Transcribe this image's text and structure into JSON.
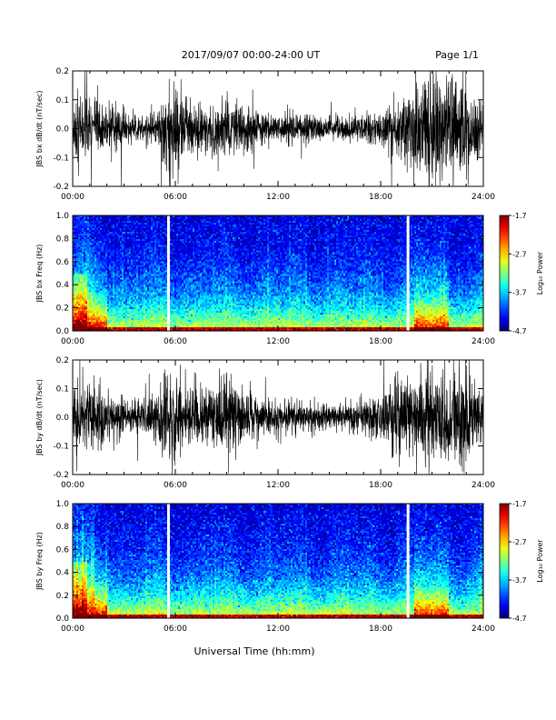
{
  "header": {
    "title": "2017/09/07  00:00-24:00 UT",
    "page": "Page 1/1"
  },
  "xlabel": "Universal Time (hh:mm)",
  "colorbar": {
    "label": "Log₁₀ Power",
    "ticks": [
      -1.7,
      -2.7,
      -3.7,
      -4.7
    ],
    "range": [
      -4.7,
      -1.7
    ]
  },
  "chart_data": [
    {
      "type": "line",
      "ylabel": "JBS bx dB/dt (nT/sec)",
      "xlim": [
        0,
        24
      ],
      "ylim": [
        -0.2,
        0.2
      ],
      "xticks": [
        "00:00",
        "06:00",
        "12:00",
        "18:00",
        "24:00"
      ],
      "yticks": [
        "0.2",
        "0.1",
        "0.0",
        "-0.1",
        "-0.2"
      ],
      "activity_hours": [
        0,
        1,
        2,
        3,
        4,
        5,
        5.5,
        6,
        7,
        8,
        9,
        10,
        11,
        12,
        13,
        14,
        15,
        16,
        17,
        18,
        19,
        20,
        21,
        22,
        23,
        24
      ],
      "amplitude_envelope": [
        0.14,
        0.13,
        0.09,
        0.06,
        0.05,
        0.07,
        0.19,
        0.18,
        0.1,
        0.08,
        0.1,
        0.09,
        0.06,
        0.05,
        0.05,
        0.05,
        0.04,
        0.04,
        0.05,
        0.07,
        0.1,
        0.18,
        0.22,
        0.19,
        0.17,
        0.08
      ]
    },
    {
      "type": "heatmap",
      "ylabel": "JBS bx Freq (Hz)",
      "xlim": [
        0,
        24
      ],
      "ylim": [
        0,
        1.0
      ],
      "xticks": [
        "00:00",
        "06:00",
        "12:00",
        "18:00",
        "24:00"
      ],
      "yticks": [
        "1.0",
        "0.8",
        "0.6",
        "0.4",
        "0.2",
        "0.0"
      ],
      "data_gaps_hours": [
        5.6,
        19.6
      ]
    },
    {
      "type": "line",
      "ylabel": "JBS by dB/dt (nT/sec)",
      "xlim": [
        0,
        24
      ],
      "ylim": [
        -0.2,
        0.2
      ],
      "xticks": [
        "00:00",
        "06:00",
        "12:00",
        "18:00",
        "24:00"
      ],
      "yticks": [
        "0.2",
        "0.1",
        "0.0",
        "-0.1",
        "-0.2"
      ],
      "activity_hours": [
        0,
        1,
        2,
        3,
        4,
        5,
        5.5,
        6,
        7,
        8,
        9,
        10,
        11,
        12,
        13,
        14,
        15,
        16,
        17,
        18,
        19,
        20,
        21,
        22,
        23,
        24
      ],
      "amplitude_envelope": [
        0.17,
        0.16,
        0.1,
        0.07,
        0.06,
        0.09,
        0.2,
        0.19,
        0.1,
        0.12,
        0.15,
        0.11,
        0.07,
        0.06,
        0.06,
        0.06,
        0.05,
        0.05,
        0.06,
        0.1,
        0.16,
        0.14,
        0.18,
        0.16,
        0.2,
        0.1
      ]
    },
    {
      "type": "heatmap",
      "ylabel": "JBS by Freq (Hz)",
      "xlim": [
        0,
        24
      ],
      "ylim": [
        0,
        1.0
      ],
      "xticks": [
        "00:00",
        "06:00",
        "12:00",
        "18:00",
        "24:00"
      ],
      "yticks": [
        "1.0",
        "0.8",
        "0.6",
        "0.4",
        "0.2",
        "0.0"
      ],
      "data_gaps_hours": [
        5.6,
        19.6
      ]
    }
  ]
}
